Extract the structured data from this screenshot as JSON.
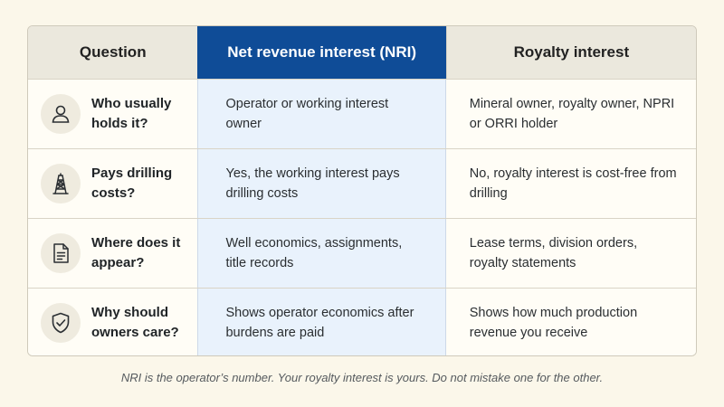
{
  "header": {
    "question": "Question",
    "nri": "Net revenue interest (NRI)",
    "royalty": "Royalty interest"
  },
  "colors": {
    "nri_header": "#0f4c97",
    "nri_column": "#e9f2fc",
    "header_bg": "#ebe8dd",
    "page_bg": "#fbf7ea"
  },
  "rows": [
    {
      "icon": "person-icon",
      "question": "Who usually holds it?",
      "nri": "Operator or working interest owner",
      "royalty": "Mineral owner, royalty owner, NPRI or ORRI holder"
    },
    {
      "icon": "drilling-rig-icon",
      "question": "Pays drilling costs?",
      "nri": "Yes, the working interest pays drilling costs",
      "royalty": "No, royalty interest is cost-free from drilling"
    },
    {
      "icon": "document-icon",
      "question": "Where does it appear?",
      "nri": "Well economics, assignments, title records",
      "royalty": "Lease terms, division orders, royalty statements"
    },
    {
      "icon": "shield-check-icon",
      "question": "Why should owners care?",
      "nri": "Shows operator economics after burdens are paid",
      "royalty": "Shows how much production revenue you receive"
    }
  ],
  "footer": "NRI is the operator’s number. Your royalty interest is yours. Do not mistake one for the other."
}
